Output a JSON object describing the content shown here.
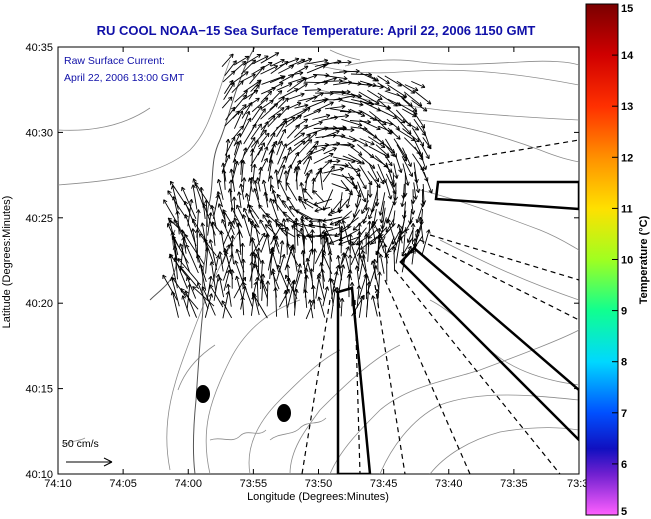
{
  "title": "RU COOL  NOAA−15  Sea Surface Temperature:  April 22, 2006 1150 GMT",
  "annotation": {
    "line1": "Raw Surface Current:",
    "line2": "April 22, 2006 13:00 GMT"
  },
  "scale_label": "50 cm/s",
  "chart_data": {
    "type": "map",
    "title": "RU COOL  NOAA−15  Sea Surface Temperature:  April 22, 2006 1150 GMT",
    "xlabel": "Longitude (Degrees:Minutes)",
    "ylabel": "Latitude (Degrees:Minutes)",
    "x_ticks": [
      "74:10",
      "74:05",
      "74:00",
      "73:55",
      "73:50",
      "73:45",
      "73:40",
      "73:35",
      "73:3"
    ],
    "y_ticks": [
      "40:35",
      "40:30",
      "40:25",
      "40:20",
      "40:15",
      "40:10"
    ],
    "colorbar": {
      "label": "Temperature (°C)",
      "ticks": [
        "15",
        "14",
        "13",
        "12",
        "11",
        "10",
        "9",
        "8",
        "7",
        "6",
        "5"
      ],
      "range": [
        5,
        15
      ]
    },
    "layers": [
      "bathymetry contours",
      "surface current vectors",
      "radial sampling lines",
      "sampling boxes",
      "station markers"
    ]
  }
}
